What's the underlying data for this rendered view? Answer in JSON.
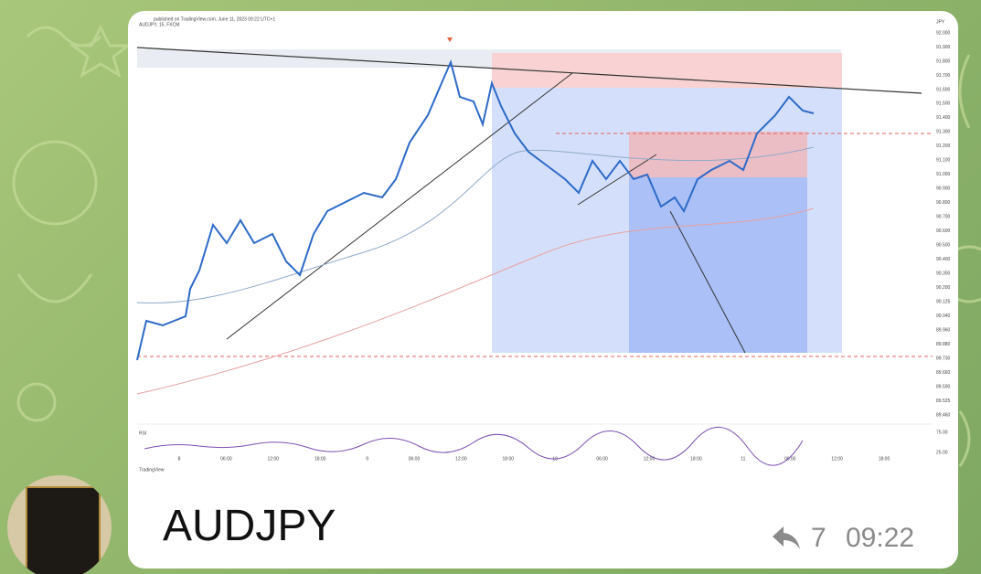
{
  "header": {
    "source": "published on TradingView.com, June 11, 2023 09:22 UTC+1",
    "symbol": "AUDJPY, 15, FXCM",
    "currency": "JPY"
  },
  "chart": {
    "price_axis": [
      "92.000",
      "91.900",
      "91.800",
      "91.700",
      "91.600",
      "91.500",
      "91.400",
      "91.300",
      "91.200",
      "91.100",
      "91.000",
      "90.900",
      "90.800",
      "90.700",
      "90.600",
      "90.500",
      "90.400",
      "90.300",
      "90.200",
      "90.125",
      "90.040",
      "89.960",
      "89.880",
      "89.730",
      "89.660",
      "89.590",
      "89.525",
      "89.460"
    ],
    "time_axis": [
      "8",
      "06:00",
      "12:00",
      "18:00",
      "9",
      "06:00",
      "12:00",
      "18:00",
      "10",
      "06:00",
      "12:00",
      "18:00",
      "11",
      "06:00",
      "12:00",
      "18:00"
    ],
    "rsi_label": "RSI",
    "rsi_axis": [
      "75.00",
      "25.00"
    ],
    "brand": "TradingView"
  },
  "message": {
    "caption": "AUDJPY",
    "replies": "7",
    "time": "09:22"
  }
}
